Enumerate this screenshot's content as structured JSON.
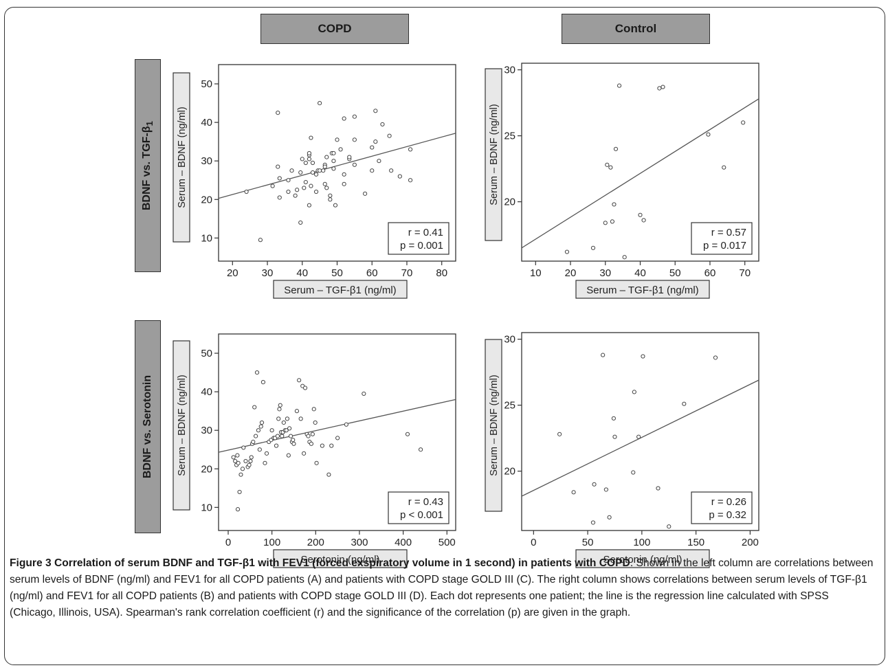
{
  "column_headers": [
    "COPD",
    "Control"
  ],
  "row_headers": [
    "BDNF  vs.  TGF-β1",
    "BDNF  vs.  Serotonin"
  ],
  "caption": {
    "title": "Figure 3 Correlation of serum BDNF and TGF-β1 with FEV1 (forced exspiratory volume in 1 second) in patients with COPD",
    "body": ". Shown in the left column are correlations between serum levels of BDNF (ng/ml) and FEV1 for all COPD patients (A) and patients with COPD stage GOLD III (C). The right column shows correlations between serum levels of TGF-β1 (ng/ml) and FEV1 for all COPD patients (B) and patients with COPD stage GOLD III (D). Each dot represents one patient; the line is the regression line calculated with SPSS (Chicago, Illinois, USA). Spearman's rank correlation coefficient (r) and the significance of the correlation (p) are given in the graph."
  },
  "chart_data": [
    {
      "type": "scatter",
      "panel": "COPD / BDNF vs. TGF-β1",
      "xlabel": "Serum – TGF-β1 (ng/ml)",
      "ylabel": "Serum – BDNF (ng/ml)",
      "xlim": [
        16,
        84
      ],
      "ylim": [
        4,
        55
      ],
      "xticks": [
        20,
        30,
        40,
        50,
        60,
        70,
        80
      ],
      "yticks": [
        10,
        20,
        30,
        40,
        50
      ],
      "stats": [
        "r = 0.41",
        "p = 0.001"
      ],
      "regression": {
        "x": [
          16,
          84
        ],
        "y": [
          20.3,
          37.2
        ]
      },
      "points": [
        [
          24,
          22
        ],
        [
          28,
          9.5
        ],
        [
          31.5,
          23.5
        ],
        [
          33,
          42.5
        ],
        [
          33,
          28.5
        ],
        [
          33.5,
          25.5
        ],
        [
          33.5,
          20.5
        ],
        [
          36,
          25
        ],
        [
          36,
          22
        ],
        [
          37,
          27.5
        ],
        [
          38,
          21
        ],
        [
          38.5,
          22.5
        ],
        [
          39.5,
          14
        ],
        [
          39.5,
          27
        ],
        [
          40,
          30.5
        ],
        [
          40.5,
          23
        ],
        [
          41,
          24.5
        ],
        [
          41,
          29.5
        ],
        [
          42,
          31.5
        ],
        [
          42,
          32
        ],
        [
          42,
          30.5
        ],
        [
          42,
          18.5
        ],
        [
          42.5,
          36
        ],
        [
          42.5,
          23.5
        ],
        [
          43,
          29.5
        ],
        [
          43,
          27
        ],
        [
          44,
          26.5
        ],
        [
          44,
          22
        ],
        [
          44.5,
          27.5
        ],
        [
          45,
          27.5
        ],
        [
          45,
          45
        ],
        [
          46,
          27.5
        ],
        [
          46.5,
          29
        ],
        [
          46.5,
          28.5
        ],
        [
          46.5,
          24
        ],
        [
          47,
          31
        ],
        [
          47,
          23
        ],
        [
          48,
          20
        ],
        [
          48,
          21
        ],
        [
          48.5,
          32
        ],
        [
          49,
          28
        ],
        [
          49,
          30
        ],
        [
          49,
          32
        ],
        [
          49.5,
          18.5
        ],
        [
          50,
          35.5
        ],
        [
          51,
          33
        ],
        [
          52,
          24
        ],
        [
          52,
          41
        ],
        [
          52,
          26.5
        ],
        [
          53.5,
          30.5
        ],
        [
          53.5,
          31
        ],
        [
          55,
          29
        ],
        [
          55,
          41.5
        ],
        [
          55,
          35.5
        ],
        [
          58,
          21.5
        ],
        [
          60,
          27.5
        ],
        [
          60,
          33.5
        ],
        [
          61,
          43
        ],
        [
          61,
          35
        ],
        [
          62,
          30
        ],
        [
          63,
          39.5
        ],
        [
          65,
          36.5
        ],
        [
          65.5,
          27.5
        ],
        [
          68,
          26
        ],
        [
          71,
          25
        ],
        [
          71,
          33
        ]
      ]
    },
    {
      "type": "scatter",
      "panel": "Control / BDNF vs. TGF-β1",
      "xlabel": "Serum – TGF-β1 (ng/ml)",
      "ylabel": "Serum – BDNF (ng/ml)",
      "xlim": [
        6,
        74
      ],
      "ylim": [
        15.5,
        30.5
      ],
      "xticks": [
        10,
        20,
        30,
        40,
        50,
        60,
        70
      ],
      "yticks": [
        20,
        25,
        30
      ],
      "stats": [
        "r = 0.57",
        "p = 0.017"
      ],
      "regression": {
        "x": [
          6,
          74
        ],
        "y": [
          16.5,
          27.8
        ]
      },
      "points": [
        [
          19,
          16.2
        ],
        [
          26.5,
          16.5
        ],
        [
          30,
          18.4
        ],
        [
          30.5,
          22.8
        ],
        [
          31.5,
          22.6
        ],
        [
          32,
          18.5
        ],
        [
          32.5,
          19.8
        ],
        [
          33,
          24
        ],
        [
          34,
          28.8
        ],
        [
          35.5,
          15.8
        ],
        [
          40,
          19
        ],
        [
          41,
          18.6
        ],
        [
          45.5,
          28.6
        ],
        [
          46.5,
          28.7
        ],
        [
          59.5,
          25.1
        ],
        [
          64,
          22.6
        ],
        [
          69.5,
          26
        ]
      ]
    },
    {
      "type": "scatter",
      "panel": "COPD / BDNF vs. Serotonin",
      "xlabel": "Serotonin (ng/ml)",
      "ylabel": "Serum – BDNF (ng/ml)",
      "xlim": [
        -22,
        520
      ],
      "ylim": [
        4,
        55
      ],
      "xticks": [
        0,
        100,
        200,
        300,
        400,
        500
      ],
      "yticks": [
        10,
        20,
        30,
        40,
        50
      ],
      "stats": [
        "r = 0.43",
        "p < 0.001"
      ],
      "regression": {
        "x": [
          -22,
          520
        ],
        "y": [
          24.3,
          38
        ]
      },
      "points": [
        [
          12,
          23
        ],
        [
          16,
          22
        ],
        [
          19,
          21
        ],
        [
          21,
          23.5
        ],
        [
          22,
          9.5
        ],
        [
          23,
          21.5
        ],
        [
          26,
          14
        ],
        [
          29,
          18.5
        ],
        [
          33,
          20
        ],
        [
          35,
          25.5
        ],
        [
          40,
          22
        ],
        [
          45,
          20.5
        ],
        [
          48,
          21
        ],
        [
          51,
          22
        ],
        [
          53,
          23
        ],
        [
          55,
          26.5
        ],
        [
          57,
          27
        ],
        [
          60,
          36
        ],
        [
          63,
          28.5
        ],
        [
          66,
          45
        ],
        [
          69,
          30
        ],
        [
          72,
          25
        ],
        [
          75,
          31
        ],
        [
          77,
          32
        ],
        [
          80,
          42.5
        ],
        [
          84,
          21.5
        ],
        [
          88,
          24
        ],
        [
          93,
          27
        ],
        [
          98,
          27.5
        ],
        [
          100,
          30
        ],
        [
          104,
          28
        ],
        [
          107,
          28
        ],
        [
          110,
          26
        ],
        [
          113,
          28.5
        ],
        [
          115,
          33
        ],
        [
          117,
          35.5
        ],
        [
          119,
          36.5
        ],
        [
          121,
          29.5
        ],
        [
          123,
          28.5
        ],
        [
          125,
          29.5
        ],
        [
          127,
          32
        ],
        [
          130,
          30
        ],
        [
          133,
          30
        ],
        [
          135,
          33
        ],
        [
          138,
          23.5
        ],
        [
          140,
          30.5
        ],
        [
          143,
          28.5
        ],
        [
          146,
          27
        ],
        [
          148,
          27.5
        ],
        [
          150,
          26.5
        ],
        [
          157,
          35
        ],
        [
          162,
          43
        ],
        [
          166,
          33
        ],
        [
          170,
          41.5
        ],
        [
          173,
          24
        ],
        [
          176,
          41
        ],
        [
          180,
          29
        ],
        [
          183,
          28.5
        ],
        [
          186,
          27
        ],
        [
          190,
          26.5
        ],
        [
          193,
          29
        ],
        [
          196,
          35.5
        ],
        [
          199,
          32
        ],
        [
          202,
          21.5
        ],
        [
          215,
          26
        ],
        [
          230,
          18.5
        ],
        [
          236,
          26
        ],
        [
          250,
          28
        ],
        [
          270,
          31.5
        ],
        [
          310,
          39.5
        ],
        [
          410,
          29
        ],
        [
          440,
          25
        ]
      ]
    },
    {
      "type": "scatter",
      "panel": "Control / BDNF vs. Serotonin",
      "xlabel": "Serotonin (ng/ml)",
      "ylabel": "Serum – BDNF (ng/ml)",
      "xlim": [
        -11,
        208
      ],
      "ylim": [
        15.5,
        30.5
      ],
      "xticks": [
        0,
        50,
        100,
        150,
        200
      ],
      "yticks": [
        20,
        25,
        30
      ],
      "stats": [
        "r = 0.26",
        "p = 0.32"
      ],
      "regression": {
        "x": [
          -11,
          208
        ],
        "y": [
          18.1,
          26.9
        ]
      },
      "points": [
        [
          24,
          22.8
        ],
        [
          37,
          18.4
        ],
        [
          55,
          16.1
        ],
        [
          56,
          19
        ],
        [
          64,
          28.8
        ],
        [
          67,
          18.6
        ],
        [
          70,
          16.5
        ],
        [
          74,
          24
        ],
        [
          75,
          22.6
        ],
        [
          92,
          19.9
        ],
        [
          93,
          26
        ],
        [
          97,
          22.6
        ],
        [
          101,
          28.7
        ],
        [
          115,
          18.7
        ],
        [
          125,
          15.8
        ],
        [
          139,
          25.1
        ],
        [
          168,
          28.6
        ]
      ]
    }
  ]
}
